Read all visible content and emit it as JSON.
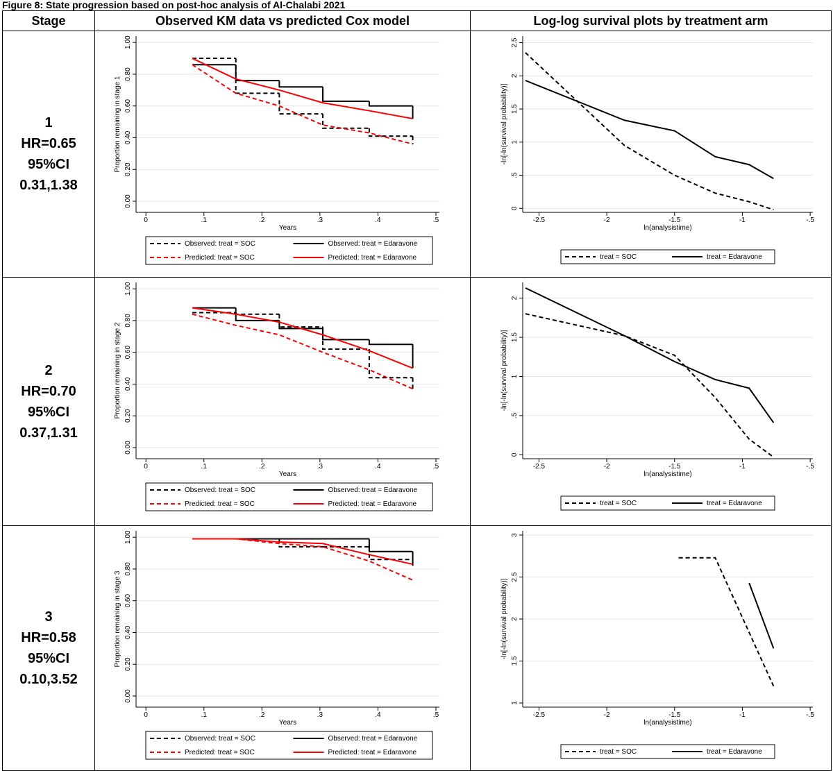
{
  "title": "Figure 8: State progression based on post-hoc analysis of Al-Chalabi 2021",
  "table": {
    "headers": [
      "Stage",
      "Observed KM data vs predicted Cox model",
      "Log-log survival plots by treatment arm"
    ],
    "rows": [
      {
        "stage": "1",
        "hr": "HR=0.65",
        "ci_label": "95%CI",
        "ci": "0.31,1.38",
        "km": {
          "type": "line",
          "xlabel": "Years",
          "ylabel": "Proportion remaining in stage 1",
          "xlim": [
            -0.017,
            0.506
          ],
          "ylim": [
            -0.07,
            1.04
          ],
          "xticks": [
            0,
            {
              "value": 0.1,
              "label": ".1"
            },
            {
              "value": 0.2,
              "label": ".2"
            },
            {
              "value": 0.3,
              "label": ".3"
            },
            {
              "value": 0.4,
              "label": ".4"
            },
            {
              "value": 0.5,
              "label": ".5"
            }
          ],
          "yticks": [
            {
              "value": 0,
              "label": "0.00"
            },
            {
              "value": 0.2,
              "label": "0.20"
            },
            {
              "value": 0.4,
              "label": "0.40"
            },
            {
              "value": 0.6,
              "label": "0.60"
            },
            {
              "value": 0.8,
              "label": "0.80"
            },
            {
              "value": 1,
              "label": "1.00"
            }
          ],
          "grid": true,
          "legend_columns": 2,
          "series": [
            {
              "name": "Observed: treat = SOC",
              "color": "#000000",
              "dash": true,
              "step": true,
              "x": [
                0.08,
                0.155,
                0.23,
                0.305,
                0.385,
                0.46
              ],
              "values": [
                0.9,
                0.68,
                0.55,
                0.46,
                0.41,
                0.36
              ]
            },
            {
              "name": "Observed: treat = Edaravone",
              "color": "#000000",
              "dash": false,
              "step": true,
              "x": [
                0.08,
                0.155,
                0.23,
                0.305,
                0.385,
                0.46
              ],
              "values": [
                0.86,
                0.76,
                0.72,
                0.63,
                0.6,
                0.52
              ]
            },
            {
              "name": "Predicted: treat = SOC",
              "color": "#ff0000",
              "dash": true,
              "step": false,
              "x": [
                0.08,
                0.155,
                0.23,
                0.305,
                0.385,
                0.46
              ],
              "values": [
                0.86,
                0.68,
                0.6,
                0.48,
                0.43,
                0.36
              ]
            },
            {
              "name": "Predicted: treat = Edaravone",
              "color": "#ff0000",
              "dash": false,
              "step": false,
              "x": [
                0.08,
                0.155,
                0.23,
                0.305,
                0.385,
                0.46
              ],
              "values": [
                0.9,
                0.77,
                0.7,
                0.62,
                0.57,
                0.52
              ]
            }
          ]
        },
        "loglog": {
          "type": "line",
          "xlabel": "ln(analysistime)",
          "ylabel": "-ln[-ln(survival probability)]",
          "xlim": [
            -2.62,
            -0.48
          ],
          "ylim": [
            -0.06,
            2.6
          ],
          "xticks": [
            -2.5,
            -2,
            -1.5,
            -1,
            {
              "value": -0.5,
              "label": "-.5"
            }
          ],
          "yticks": [
            0,
            {
              "value": 0.5,
              "label": ".5"
            },
            1,
            1.5,
            2,
            2.5
          ],
          "grid": true,
          "legend_columns": 2,
          "series": [
            {
              "name": "treat = SOC",
              "color": "#000000",
              "dash": true,
              "step": false,
              "x": [
                -2.6,
                -1.87,
                -1.5,
                -1.2,
                -0.95,
                -0.77
              ],
              "values": [
                2.35,
                0.95,
                0.5,
                0.23,
                0.1,
                -0.02
              ]
            },
            {
              "name": "treat = Edaravone",
              "color": "#000000",
              "dash": false,
              "step": false,
              "x": [
                -2.6,
                -1.87,
                -1.5,
                -1.2,
                -0.95,
                -0.77
              ],
              "values": [
                1.93,
                1.33,
                1.17,
                0.78,
                0.66,
                0.45
              ]
            }
          ]
        }
      },
      {
        "stage": "2",
        "hr": "HR=0.70",
        "ci_label": "95%CI",
        "ci": "0.37,1.31",
        "km": {
          "type": "line",
          "xlabel": "Years",
          "ylabel": "Proportion remaining in stage 2",
          "xlim": [
            -0.017,
            0.506
          ],
          "ylim": [
            -0.07,
            1.04
          ],
          "xticks": [
            0,
            {
              "value": 0.1,
              "label": ".1"
            },
            {
              "value": 0.2,
              "label": ".2"
            },
            {
              "value": 0.3,
              "label": ".3"
            },
            {
              "value": 0.4,
              "label": ".4"
            },
            {
              "value": 0.5,
              "label": ".5"
            }
          ],
          "yticks": [
            {
              "value": 0,
              "label": "0.00"
            },
            {
              "value": 0.2,
              "label": "0.20"
            },
            {
              "value": 0.4,
              "label": "0.40"
            },
            {
              "value": 0.6,
              "label": "0.60"
            },
            {
              "value": 0.8,
              "label": "0.80"
            },
            {
              "value": 1,
              "label": "1.00"
            }
          ],
          "grid": true,
          "legend_columns": 2,
          "series": [
            {
              "name": "Observed: treat = SOC",
              "color": "#000000",
              "dash": true,
              "step": true,
              "x": [
                0.08,
                0.155,
                0.23,
                0.305,
                0.385,
                0.46
              ],
              "values": [
                0.85,
                0.84,
                0.76,
                0.62,
                0.44,
                0.36
              ]
            },
            {
              "name": "Observed: treat = Edaravone",
              "color": "#000000",
              "dash": false,
              "step": true,
              "x": [
                0.08,
                0.155,
                0.23,
                0.305,
                0.385,
                0.46
              ],
              "values": [
                0.88,
                0.8,
                0.75,
                0.68,
                0.65,
                0.5
              ]
            },
            {
              "name": "Predicted: treat = SOC",
              "color": "#ff0000",
              "dash": true,
              "step": false,
              "x": [
                0.08,
                0.155,
                0.23,
                0.305,
                0.385,
                0.46
              ],
              "values": [
                0.84,
                0.77,
                0.71,
                0.6,
                0.49,
                0.37
              ]
            },
            {
              "name": "Predicted: treat = Edaravone",
              "color": "#ff0000",
              "dash": false,
              "step": false,
              "x": [
                0.08,
                0.155,
                0.23,
                0.305,
                0.385,
                0.46
              ],
              "values": [
                0.88,
                0.84,
                0.79,
                0.71,
                0.61,
                0.5
              ]
            }
          ]
        },
        "loglog": {
          "type": "line",
          "xlabel": "ln(analysistime)",
          "ylabel": "-ln[-ln(survival probability)]",
          "xlim": [
            -2.62,
            -0.48
          ],
          "ylim": [
            -0.05,
            2.2
          ],
          "xticks": [
            -2.5,
            -2,
            -1.5,
            -1,
            {
              "value": -0.5,
              "label": "-.5"
            }
          ],
          "yticks": [
            0,
            {
              "value": 0.5,
              "label": ".5"
            },
            1,
            1.5,
            2
          ],
          "grid": true,
          "legend_columns": 2,
          "series": [
            {
              "name": "treat = SOC",
              "color": "#000000",
              "dash": true,
              "step": false,
              "x": [
                -2.6,
                -1.87,
                -1.5,
                -1.2,
                -0.95,
                -0.77
              ],
              "values": [
                1.8,
                1.52,
                1.27,
                0.73,
                0.2,
                -0.03
              ]
            },
            {
              "name": "treat = Edaravone",
              "color": "#000000",
              "dash": false,
              "step": false,
              "x": [
                -2.6,
                -1.87,
                -1.5,
                -1.2,
                -0.95,
                -0.77
              ],
              "values": [
                2.13,
                1.52,
                1.19,
                0.96,
                0.85,
                0.41
              ]
            }
          ]
        }
      },
      {
        "stage": "3",
        "hr": "HR=0.58",
        "ci_label": "95%CI",
        "ci": "0.10,3.52",
        "km": {
          "type": "line",
          "xlabel": "Years",
          "ylabel": "Proportion remaining in stage 3",
          "xlim": [
            -0.017,
            0.506
          ],
          "ylim": [
            -0.07,
            1.04
          ],
          "xticks": [
            0,
            {
              "value": 0.1,
              "label": ".1"
            },
            {
              "value": 0.2,
              "label": ".2"
            },
            {
              "value": 0.3,
              "label": ".3"
            },
            {
              "value": 0.4,
              "label": ".4"
            },
            {
              "value": 0.5,
              "label": ".5"
            }
          ],
          "yticks": [
            {
              "value": 0,
              "label": "0.00"
            },
            {
              "value": 0.2,
              "label": "0.20"
            },
            {
              "value": 0.4,
              "label": "0.40"
            },
            {
              "value": 0.6,
              "label": "0.60"
            },
            {
              "value": 0.8,
              "label": "0.80"
            },
            {
              "value": 1,
              "label": "1.00"
            }
          ],
          "grid": true,
          "legend_columns": 2,
          "series": [
            {
              "name": "Observed: treat = SOC",
              "color": "#000000",
              "dash": true,
              "step": true,
              "x": [
                0.08,
                0.155,
                0.23,
                0.305,
                0.385,
                0.46
              ],
              "values": [
                0.99,
                0.99,
                0.94,
                0.94,
                0.86,
                0.82
              ]
            },
            {
              "name": "Observed: treat = Edaravone",
              "color": "#000000",
              "dash": false,
              "step": true,
              "x": [
                0.08,
                0.155,
                0.23,
                0.305,
                0.385,
                0.46
              ],
              "values": [
                0.99,
                0.99,
                0.99,
                0.99,
                0.91,
                0.82
              ]
            },
            {
              "name": "Predicted: treat = SOC",
              "color": "#ff0000",
              "dash": true,
              "step": false,
              "x": [
                0.08,
                0.155,
                0.23,
                0.305,
                0.385,
                0.46
              ],
              "values": [
                0.99,
                0.99,
                0.96,
                0.94,
                0.85,
                0.73
              ]
            },
            {
              "name": "Predicted: treat = Edaravone",
              "color": "#ff0000",
              "dash": false,
              "step": false,
              "x": [
                0.08,
                0.155,
                0.23,
                0.305,
                0.385,
                0.46
              ],
              "values": [
                0.99,
                0.99,
                0.97,
                0.96,
                0.89,
                0.83
              ]
            }
          ]
        },
        "loglog": {
          "type": "line",
          "xlabel": "ln(analysistime)",
          "ylabel": "-ln[-ln(survival probability)]",
          "xlim": [
            -2.62,
            -0.48
          ],
          "ylim": [
            0.95,
            3.05
          ],
          "xticks": [
            -2.5,
            -2,
            -1.5,
            -1,
            {
              "value": -0.5,
              "label": "-.5"
            }
          ],
          "yticks": [
            1,
            1.5,
            2,
            2.5,
            3
          ],
          "grid": true,
          "legend_columns": 2,
          "series": [
            {
              "name": "treat = SOC",
              "color": "#000000",
              "dash": true,
              "step": false,
              "x": [
                -1.47,
                -1.2,
                -0.77
              ],
              "values": [
                2.73,
                2.73,
                1.2
              ]
            },
            {
              "name": "treat = Edaravone",
              "color": "#000000",
              "dash": false,
              "step": false,
              "x": [
                -0.95,
                -0.77
              ],
              "values": [
                2.43,
                1.65
              ]
            }
          ]
        }
      }
    ]
  }
}
